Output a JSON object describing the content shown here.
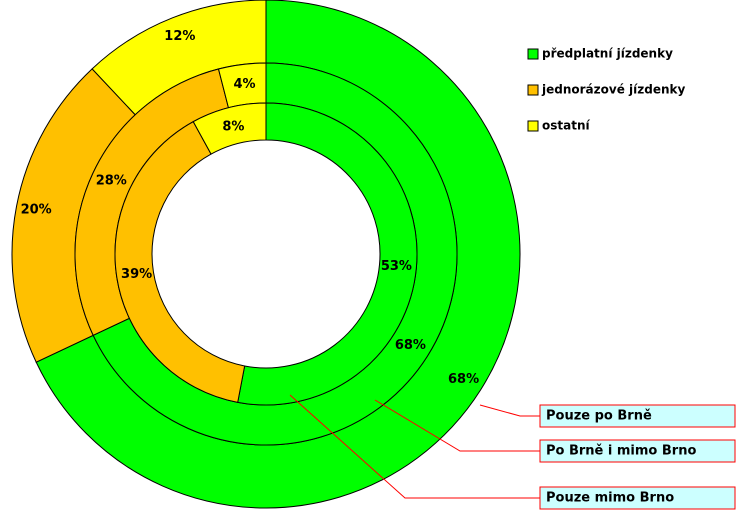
{
  "chart_data": {
    "type": "donut",
    "categories": [
      "předplatní jízdenky",
      "jednorázové jízdenky",
      "ostatní"
    ],
    "colors": [
      "#00ff00",
      "#ffc000",
      "#ffff00"
    ],
    "series": [
      {
        "name": "Pouze po Brně",
        "values": [
          68,
          20,
          12
        ],
        "value_labels": [
          "68%",
          "20%",
          "12%"
        ]
      },
      {
        "name": "Po Brně i mimo Brno",
        "values": [
          68,
          28,
          4
        ],
        "value_labels": [
          "68%",
          "28%",
          "4%"
        ]
      },
      {
        "name": "Pouze mimo Brno",
        "values": [
          53,
          39,
          8
        ],
        "value_labels": [
          "53%",
          "39%",
          "8%"
        ]
      }
    ]
  }
}
